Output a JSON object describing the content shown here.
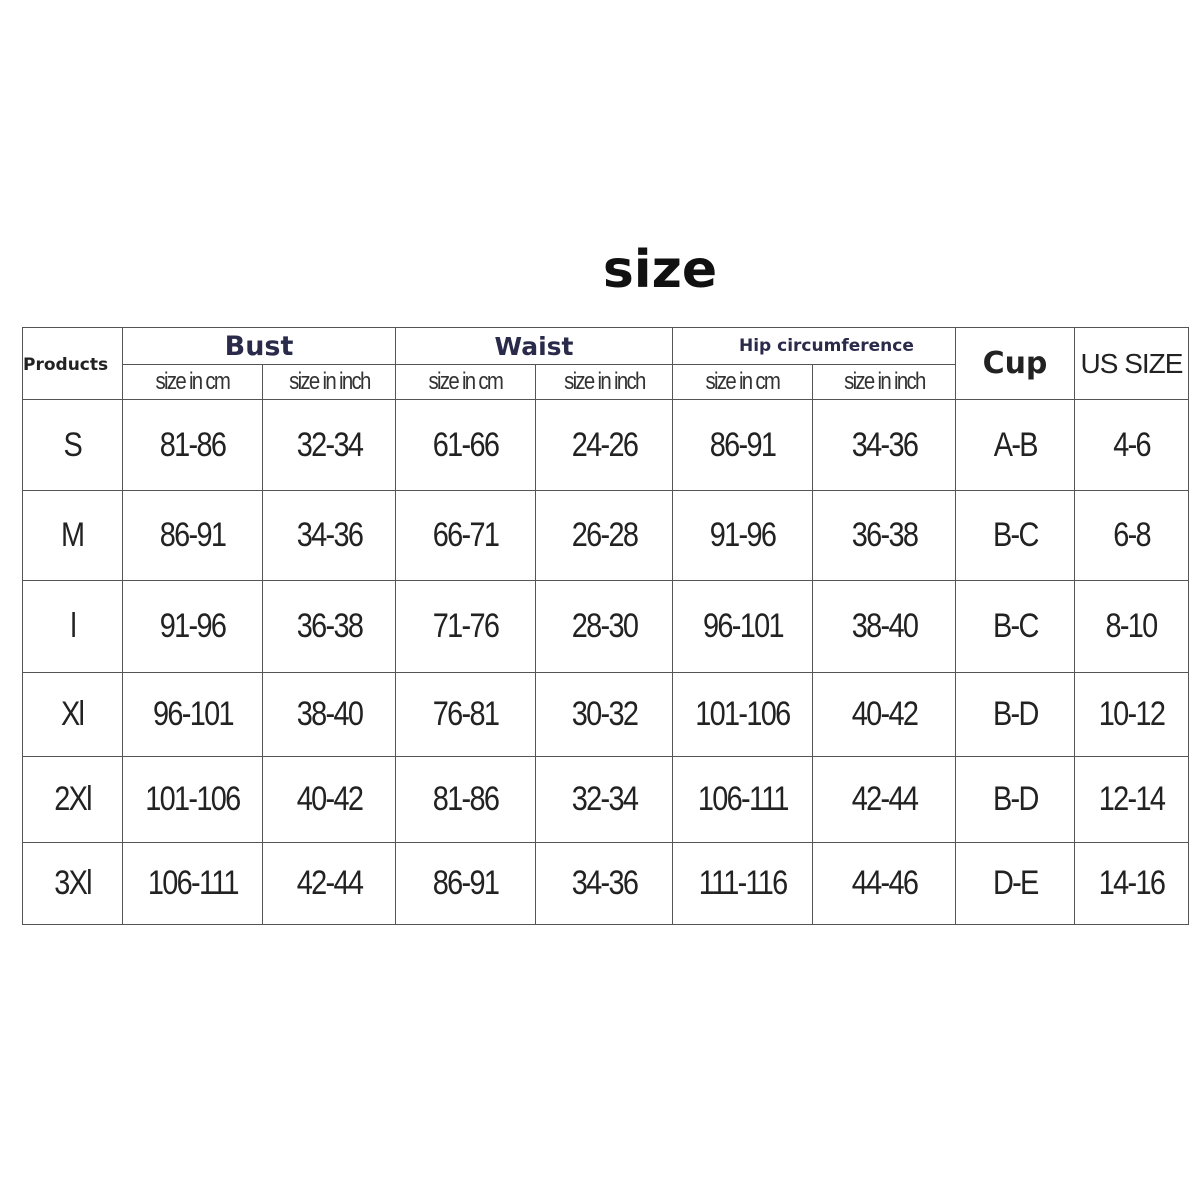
{
  "title": "size",
  "headers": {
    "products": "Products",
    "bust": "Bust",
    "waist": "Waist",
    "hip": "Hip circumference",
    "cup": "Cup",
    "us_size": "US SIZE",
    "size_cm": "size in cm",
    "size_inch": "size in inch"
  },
  "rows": [
    {
      "size": "S",
      "bust_cm": "81-86",
      "bust_in": "32-34",
      "waist_cm": "61-66",
      "waist_in": "24-26",
      "hip_cm": "86-91",
      "hip_in": "34-36",
      "cup": "A-B",
      "us": "4-6"
    },
    {
      "size": "M",
      "bust_cm": "86-91",
      "bust_in": "34-36",
      "waist_cm": "66-71",
      "waist_in": "26-28",
      "hip_cm": "91-96",
      "hip_in": "36-38",
      "cup": "B-C",
      "us": "6-8"
    },
    {
      "size": "l",
      "bust_cm": "91-96",
      "bust_in": "36-38",
      "waist_cm": "71-76",
      "waist_in": "28-30",
      "hip_cm": "96-101",
      "hip_in": "38-40",
      "cup": "B-C",
      "us": "8-10"
    },
    {
      "size": "Xl",
      "bust_cm": "96-101",
      "bust_in": "38-40",
      "waist_cm": "76-81",
      "waist_in": "30-32",
      "hip_cm": "101-106",
      "hip_in": "40-42",
      "cup": "B-D",
      "us": "10-12"
    },
    {
      "size": "2Xl",
      "bust_cm": "101-106",
      "bust_in": "40-42",
      "waist_cm": "81-86",
      "waist_in": "32-34",
      "hip_cm": "106-111",
      "hip_in": "42-44",
      "cup": "B-D",
      "us": "12-14"
    },
    {
      "size": "3Xl",
      "bust_cm": "106-111",
      "bust_in": "42-44",
      "waist_cm": "86-91",
      "waist_in": "34-36",
      "hip_cm": "111-116",
      "hip_in": "44-46",
      "cup": "D-E",
      "us": "14-16"
    }
  ]
}
